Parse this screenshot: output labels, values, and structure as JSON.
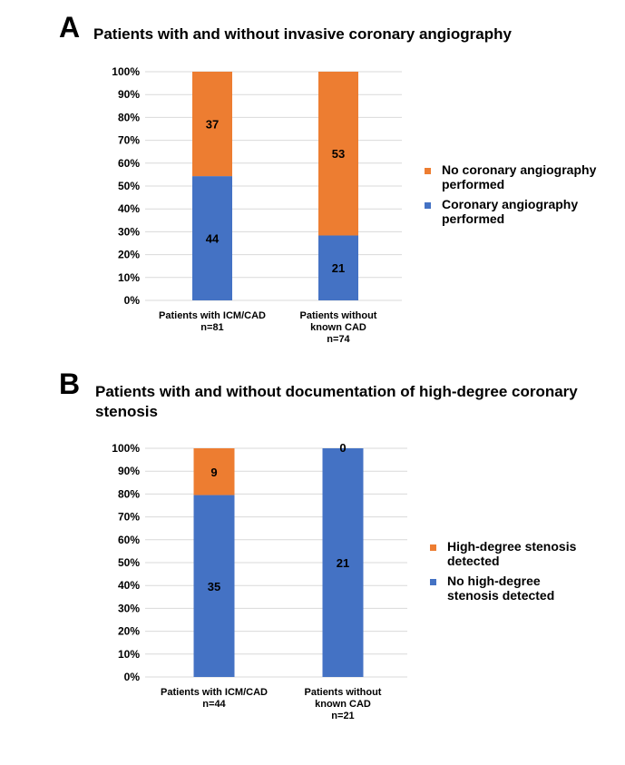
{
  "colors": {
    "orange": "#ED7D31",
    "blue": "#4472C4",
    "grid": "#d9d9d9"
  },
  "chart_data": [
    {
      "type": "bar",
      "stacked": "percent",
      "panel": "A",
      "title": "Patients with and without invasive coronary angiography",
      "categories": [
        [
          "Patients with ICM/CAD",
          "n=81"
        ],
        [
          "Patients without",
          "known CAD",
          "n=74"
        ]
      ],
      "yticks": [
        "0%",
        "10%",
        "20%",
        "30%",
        "40%",
        "50%",
        "60%",
        "70%",
        "80%",
        "90%",
        "100%"
      ],
      "ylim": [
        0,
        100
      ],
      "grid": true,
      "legend_position": "right",
      "series": [
        {
          "name": [
            "Coronary angiography",
            "performed"
          ],
          "color": "blue",
          "values": [
            44,
            21
          ]
        },
        {
          "name": [
            "No coronary angiography",
            "performed"
          ],
          "color": "orange",
          "values": [
            37,
            53
          ]
        }
      ],
      "legend_order": [
        1,
        0
      ]
    },
    {
      "type": "bar",
      "stacked": "percent",
      "panel": "B",
      "title": [
        "Patients with and without documentation of high-degree coronary",
        "stenosis"
      ],
      "categories": [
        [
          "Patients with ICM/CAD",
          "n=44"
        ],
        [
          "Patients without",
          "known CAD",
          "n=21"
        ]
      ],
      "yticks": [
        "0%",
        "10%",
        "20%",
        "30%",
        "40%",
        "50%",
        "60%",
        "70%",
        "80%",
        "90%",
        "100%"
      ],
      "ylim": [
        0,
        100
      ],
      "grid": true,
      "legend_position": "right",
      "series": [
        {
          "name": [
            "No high-degree",
            "stenosis detected"
          ],
          "color": "blue",
          "values": [
            35,
            21
          ]
        },
        {
          "name": [
            "High-degree stenosis",
            "detected"
          ],
          "color": "orange",
          "values": [
            9,
            0
          ]
        }
      ],
      "legend_order": [
        1,
        0
      ]
    }
  ]
}
